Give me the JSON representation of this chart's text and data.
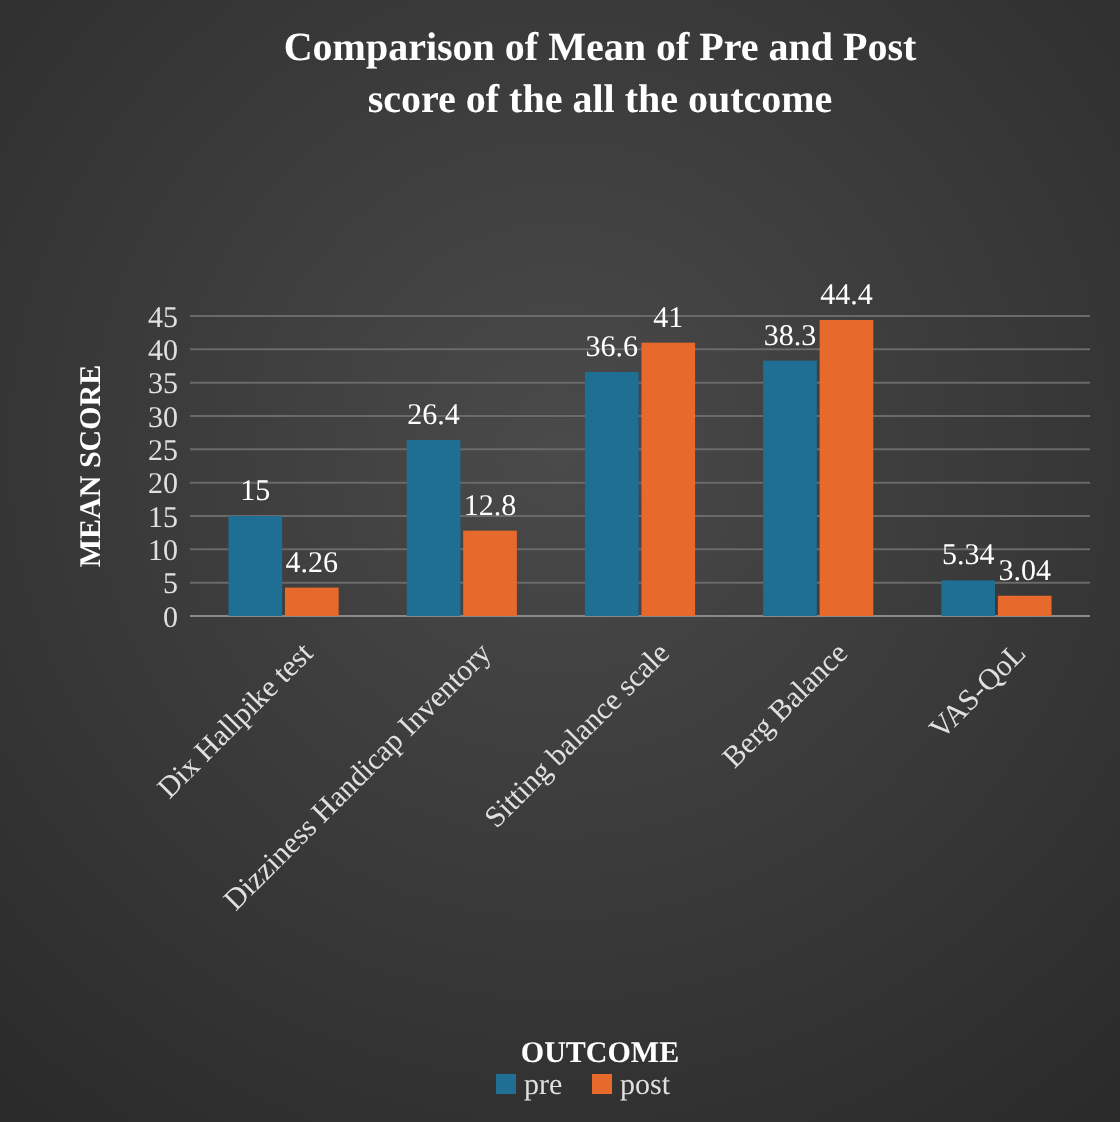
{
  "chart_data": {
    "type": "bar",
    "title": "Comparison of Mean of Pre and Post score of the all the outcome",
    "xlabel": "OUTCOME",
    "ylabel": "MEAN SCORE",
    "categories": [
      "Dix Hallpike test",
      "Dizziness Handicap Inventory",
      "Sitting balance scale",
      "Berg Balance",
      "VAS-QoL"
    ],
    "series": [
      {
        "name": "pre",
        "color": "#1f6f94",
        "values": [
          15,
          26.4,
          36.6,
          38.3,
          5.34
        ]
      },
      {
        "name": "post",
        "color": "#e8692c",
        "values": [
          4.26,
          12.8,
          41,
          44.4,
          3.04
        ]
      }
    ],
    "ylim": [
      0,
      45
    ],
    "yticks": [
      0,
      5,
      10,
      15,
      20,
      25,
      30,
      35,
      40,
      45
    ],
    "grid": "y",
    "legend": "bottom",
    "data_labels": true
  }
}
